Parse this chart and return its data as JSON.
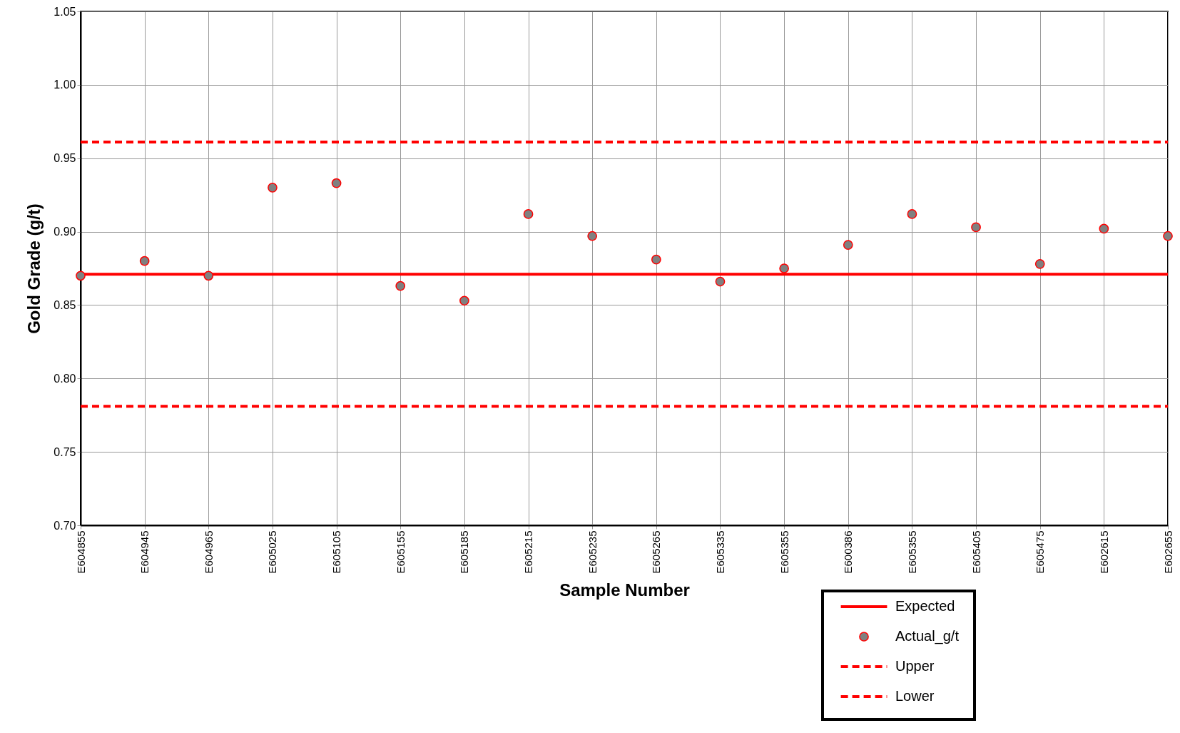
{
  "chart_data": {
    "type": "scatter",
    "xlabel": "Sample Number",
    "ylabel": "Gold Grade (g/t)",
    "categories": [
      "E604855",
      "E604945",
      "E604965",
      "E605025",
      "E605105",
      "E605155",
      "E605185",
      "E605215",
      "E605235",
      "E605265",
      "E605335",
      "E605355",
      "E600386",
      "E605355",
      "E605405",
      "E605475",
      "E602615",
      "E602655"
    ],
    "series": [
      {
        "name": "Expected",
        "type": "line",
        "line_style": "solid",
        "color": "#ff0000",
        "values": [
          0.871,
          0.871,
          0.871,
          0.871,
          0.871,
          0.871,
          0.871,
          0.871,
          0.871,
          0.871,
          0.871,
          0.871,
          0.871,
          0.871,
          0.871,
          0.871,
          0.871,
          0.871
        ]
      },
      {
        "name": "Actual_g/t",
        "marker": "circle",
        "color": "#ff0000",
        "values": [
          0.87,
          0.88,
          0.87,
          0.93,
          0.933,
          0.863,
          0.853,
          0.912,
          0.897,
          0.881,
          0.866,
          0.875,
          0.891,
          0.912,
          0.903,
          0.878,
          0.902,
          0.897
        ]
      },
      {
        "name": "Upper",
        "type": "line",
        "line_style": "dashed",
        "color": "#ff0000",
        "values": [
          0.961,
          0.961,
          0.961,
          0.961,
          0.961,
          0.961,
          0.961,
          0.961,
          0.961,
          0.961,
          0.961,
          0.961,
          0.961,
          0.961,
          0.961,
          0.961,
          0.961,
          0.961
        ]
      },
      {
        "name": "Lower",
        "type": "line",
        "line_style": "dashed",
        "color": "#ff0000",
        "values": [
          0.781,
          0.781,
          0.781,
          0.781,
          0.781,
          0.781,
          0.781,
          0.781,
          0.781,
          0.781,
          0.781,
          0.781,
          0.781,
          0.781,
          0.781,
          0.781,
          0.781,
          0.781
        ]
      }
    ],
    "ylim": [
      0.7,
      1.05
    ],
    "yticks": [
      {
        "value": 0.7,
        "label": "0.70"
      },
      {
        "value": 0.75,
        "label": "0.75"
      },
      {
        "value": 0.8,
        "label": "0.80"
      },
      {
        "value": 0.85,
        "label": "0.85"
      },
      {
        "value": 0.9,
        "label": "0.90"
      },
      {
        "value": 0.95,
        "label": "0.95"
      },
      {
        "value": 1.0,
        "label": "1.00"
      },
      {
        "value": 1.05,
        "label": "1.05"
      }
    ],
    "grid": true,
    "legend": "bottom right"
  }
}
